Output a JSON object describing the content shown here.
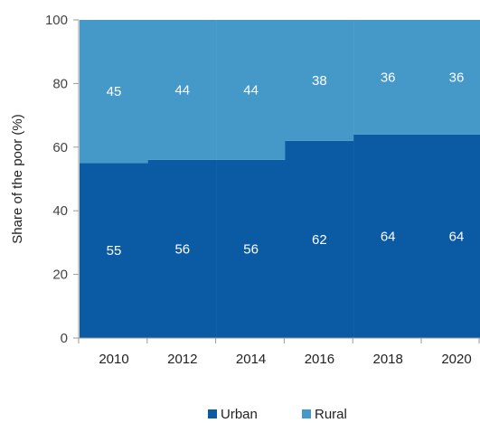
{
  "chart_data": {
    "type": "bar",
    "stacked": true,
    "categories": [
      "2010",
      "2012",
      "2014",
      "2016",
      "2018",
      "2020"
    ],
    "series": [
      {
        "name": "Urban",
        "values": [
          55,
          56,
          56,
          62,
          64,
          64
        ],
        "color": "#0b5aa4"
      },
      {
        "name": "Rural",
        "values": [
          45,
          44,
          44,
          38,
          36,
          36
        ],
        "color": "#4499c8"
      }
    ],
    "title": "",
    "xlabel": "",
    "ylabel": "Share of the poor (%)",
    "ylim": [
      0,
      100
    ],
    "yticks": [
      0,
      20,
      40,
      60,
      80,
      100
    ],
    "grid": false,
    "legend_position": "bottom"
  }
}
